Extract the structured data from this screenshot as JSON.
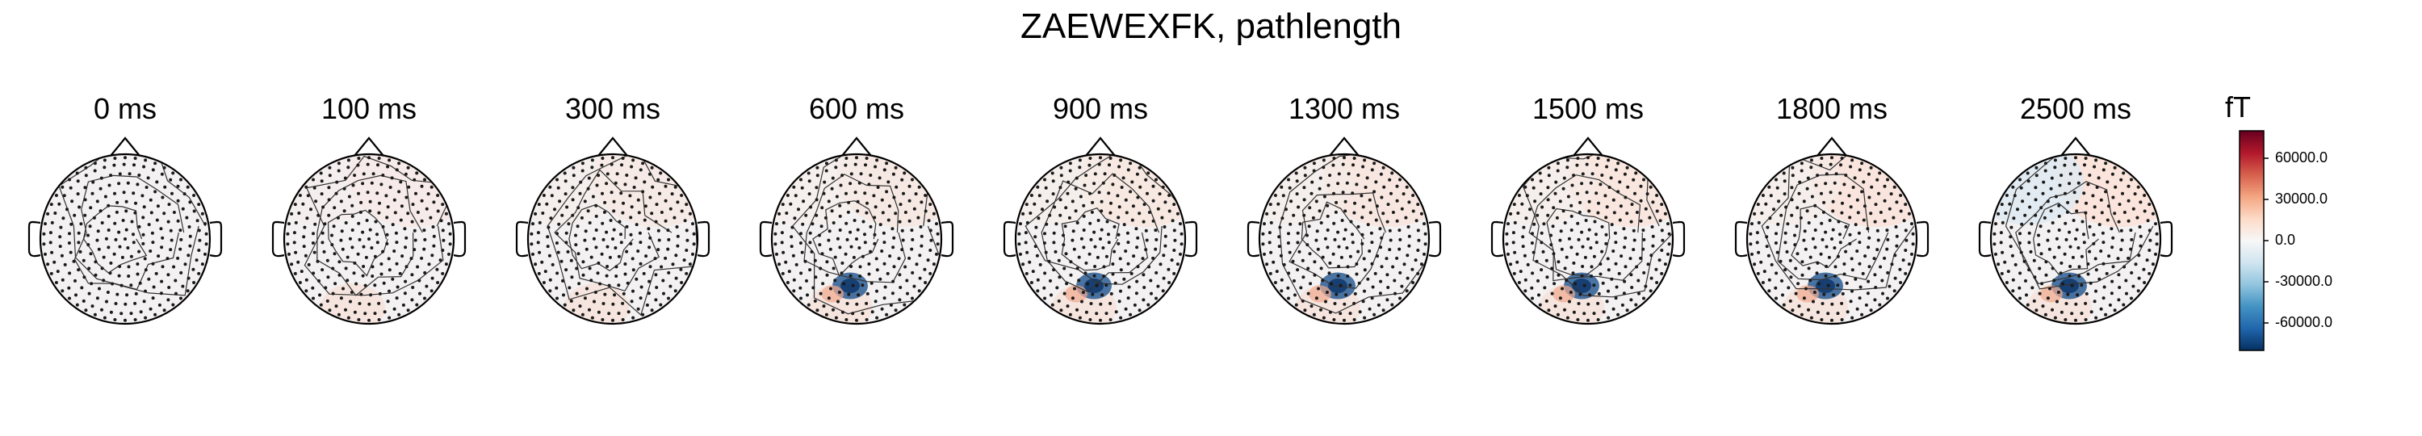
{
  "title": "ZAEWEXFK, pathlength",
  "chart_data": {
    "type": "heatmap",
    "title": "ZAEWEXFK, pathlength",
    "panels": [
      {
        "label": "0 ms",
        "time_ms": 0
      },
      {
        "label": "100 ms",
        "time_ms": 100
      },
      {
        "label": "300 ms",
        "time_ms": 300
      },
      {
        "label": "600 ms",
        "time_ms": 600
      },
      {
        "label": "900 ms",
        "time_ms": 900
      },
      {
        "label": "1300 ms",
        "time_ms": 1300
      },
      {
        "label": "1500 ms",
        "time_ms": 1500
      },
      {
        "label": "1800 ms",
        "time_ms": 1800
      },
      {
        "label": "2500 ms",
        "time_ms": 2500
      }
    ],
    "colorbar": {
      "unit": "fT",
      "ticks": [
        "60000.0",
        "30000.0",
        "0.0",
        "-30000.0",
        "-60000.0"
      ],
      "tick_values": [
        60000,
        30000,
        0,
        -30000,
        -60000
      ],
      "range": [
        -80000,
        80000
      ],
      "colormap": [
        "#053061",
        "#2166ac",
        "#4393c3",
        "#92c5de",
        "#d1e5f0",
        "#f7f7f7",
        "#fddbc7",
        "#f4a582",
        "#d6604d",
        "#b2182b",
        "#67001f"
      ]
    }
  },
  "colors": {
    "head_outline": "#000000",
    "sensor_dot": "#1a1a1a",
    "contour": "#333333",
    "background": "#ffffff"
  }
}
